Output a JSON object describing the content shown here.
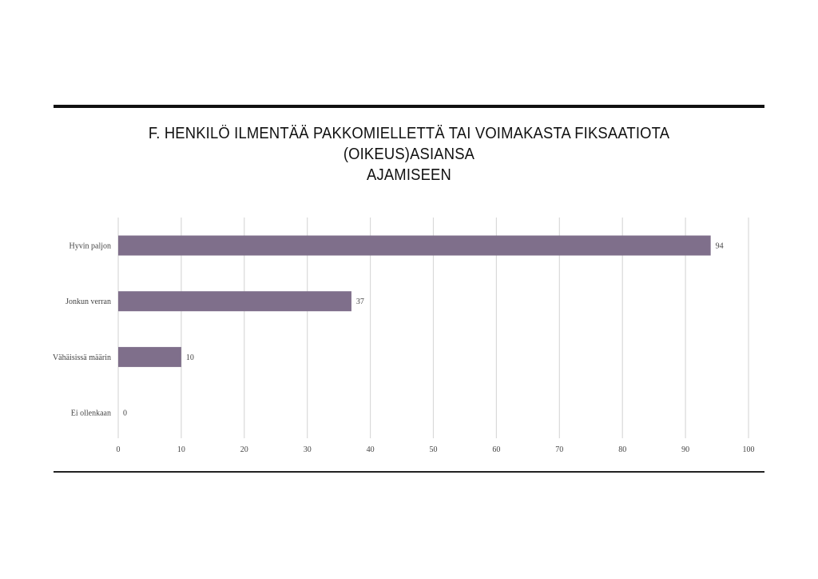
{
  "chart_data": {
    "type": "bar",
    "orientation": "horizontal",
    "title_lines": [
      "F. HENKILÖ ILMENTÄÄ PAKKOMIELLETTÄ TAI VOIMAKASTA FIKSAATIOTA (OIKEUS)ASIANSA",
      "AJAMISEEN"
    ],
    "categories": [
      "Hyvin paljon",
      "Jonkun verran",
      "Vähäisissä määrin",
      "Ei ollenkaan"
    ],
    "values": [
      94,
      37,
      10,
      0
    ],
    "xlim": [
      0,
      100
    ],
    "xticks": [
      0,
      10,
      20,
      30,
      40,
      50,
      60,
      70,
      80,
      90,
      100
    ],
    "xlabel": "",
    "ylabel": "",
    "grid": true,
    "bar_color": "#7f6f8b",
    "data_labels": true
  }
}
